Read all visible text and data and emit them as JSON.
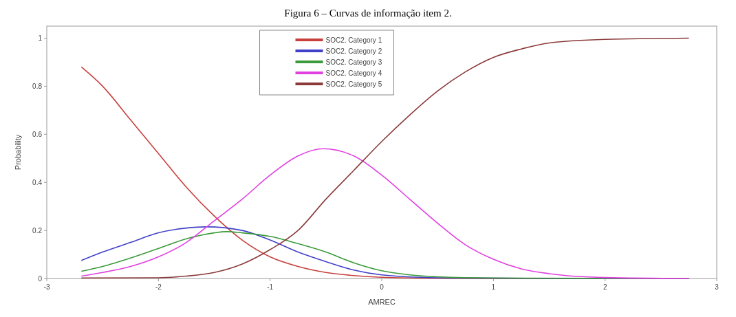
{
  "chart_data": {
    "type": "line",
    "title": "Figura 6 – Curvas de informação item 2.",
    "xlabel": "AMREC",
    "ylabel": "Probability",
    "xlim": [
      -3,
      3
    ],
    "xticks": [
      -3,
      -2,
      -1,
      0,
      1,
      2,
      3
    ],
    "ylim": [
      0,
      1.05
    ],
    "yticks": [
      0,
      0.2,
      0.4,
      0.6,
      0.8,
      1
    ],
    "grid": false,
    "legend": "top",
    "marker": "none",
    "line_style": "solid",
    "series": [
      {
        "name": "SOC2. Category 1",
        "color": "#c8403c",
        "x": [
          -2.69,
          -2.5,
          -2.25,
          -2,
          -1.75,
          -1.5,
          -1.25,
          -1,
          -0.75,
          -0.5,
          -0.25,
          0,
          0.5,
          1,
          2.75
        ],
        "values": [
          0.88,
          0.8,
          0.66,
          0.52,
          0.38,
          0.26,
          0.16,
          0.09,
          0.05,
          0.025,
          0.012,
          0.005,
          0.001,
          0,
          0
        ]
      },
      {
        "name": "SOC2. Category 2",
        "color": "#4040c8",
        "x": [
          -2.69,
          -2.5,
          -2.25,
          -2,
          -1.75,
          -1.57,
          -1.25,
          -1,
          -0.75,
          -0.5,
          -0.25,
          0,
          0.5,
          1,
          2.75
        ],
        "values": [
          0.075,
          0.11,
          0.15,
          0.19,
          0.21,
          0.215,
          0.2,
          0.16,
          0.11,
          0.07,
          0.035,
          0.015,
          0.003,
          0.001,
          0
        ]
      },
      {
        "name": "SOC2. Category 3",
        "color": "#3a9a3a",
        "x": [
          -2.69,
          -2.5,
          -2.25,
          -2,
          -1.75,
          -1.5,
          -1.39,
          -1.25,
          -1,
          -0.75,
          -0.5,
          -0.25,
          0,
          0.25,
          0.5,
          1,
          2.75
        ],
        "values": [
          0.03,
          0.05,
          0.085,
          0.125,
          0.165,
          0.19,
          0.195,
          0.19,
          0.175,
          0.145,
          0.11,
          0.065,
          0.032,
          0.015,
          0.007,
          0.002,
          0
        ]
      },
      {
        "name": "SOC2. Category 4",
        "color": "#e040e0",
        "x": [
          -2.69,
          -2.5,
          -2.25,
          -2,
          -1.75,
          -1.5,
          -1.25,
          -1,
          -0.75,
          -0.53,
          -0.25,
          0,
          0.25,
          0.5,
          0.75,
          1,
          1.25,
          1.5,
          2,
          2.75
        ],
        "values": [
          0.01,
          0.025,
          0.05,
          0.09,
          0.15,
          0.24,
          0.33,
          0.43,
          0.51,
          0.54,
          0.51,
          0.43,
          0.33,
          0.23,
          0.14,
          0.08,
          0.04,
          0.02,
          0.004,
          0
        ]
      },
      {
        "name": "SOC2. Category 5",
        "color": "#8b3a3a",
        "x": [
          -2.69,
          -2,
          -1.75,
          -1.5,
          -1.25,
          -1,
          -0.75,
          -0.5,
          -0.25,
          0,
          0.25,
          0.5,
          0.75,
          1,
          1.25,
          1.5,
          2,
          2.75
        ],
        "values": [
          0.002,
          0.003,
          0.01,
          0.025,
          0.06,
          0.12,
          0.2,
          0.33,
          0.45,
          0.57,
          0.68,
          0.78,
          0.86,
          0.92,
          0.955,
          0.98,
          0.995,
          1
        ]
      }
    ]
  }
}
